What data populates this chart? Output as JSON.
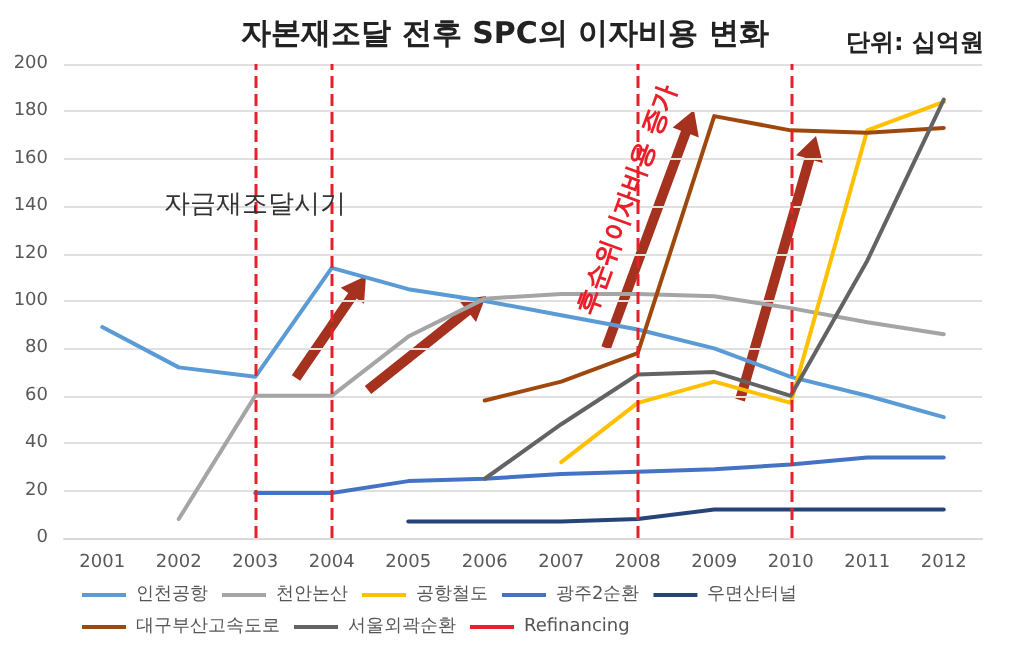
{
  "chart_data": {
    "type": "line",
    "title": "자본재조달 전후 SPC의 이자비용 변화",
    "subtitle": "단위: 십억원",
    "categories": [
      "2001",
      "2002",
      "2003",
      "2004",
      "2005",
      "2006",
      "2007",
      "2008",
      "2009",
      "2010",
      "2011",
      "2012"
    ],
    "series": [
      {
        "name": "인천공항",
        "color": "#5b9bd5",
        "values": [
          89,
          72,
          68,
          114,
          105,
          100,
          94,
          88,
          80,
          68,
          60,
          51
        ]
      },
      {
        "name": "천안논산",
        "color": "#a5a5a5",
        "values": [
          null,
          8,
          60,
          60,
          85,
          101,
          103,
          103,
          102,
          97,
          91,
          86
        ]
      },
      {
        "name": "공항철도",
        "color": "#ffc000",
        "values": [
          null,
          null,
          null,
          null,
          null,
          null,
          32,
          57,
          66,
          57,
          172,
          184
        ]
      },
      {
        "name": "광주2순환",
        "color": "#4472c4",
        "values": [
          null,
          null,
          19,
          19,
          24,
          25,
          27,
          28,
          29,
          31,
          34,
          34
        ]
      },
      {
        "name": "우면산터널",
        "color": "#264478",
        "values": [
          null,
          null,
          null,
          null,
          7,
          7,
          7,
          8,
          12,
          12,
          12,
          12
        ]
      },
      {
        "name": "대구부산고속도로",
        "color": "#9e480e",
        "values": [
          null,
          null,
          null,
          null,
          null,
          58,
          66,
          78,
          178,
          172,
          171,
          173
        ]
      },
      {
        "name": "서울외곽순환",
        "color": "#636363",
        "values": [
          null,
          null,
          null,
          null,
          null,
          25,
          48,
          69,
          70,
          60,
          117,
          185
        ]
      }
    ],
    "ylim": [
      0,
      200
    ],
    "yticks": [
      0,
      20,
      40,
      60,
      80,
      100,
      120,
      140,
      160,
      180,
      200
    ],
    "grid": "y",
    "legend": "bottom",
    "marker": "none",
    "line_style": "solid",
    "ref_lines": [
      {
        "axis": "x",
        "value": "2003",
        "label": "Refinancing",
        "color": "#e8202a",
        "line_style": "dashed"
      },
      {
        "axis": "x",
        "value": "2004",
        "color": "#e8202a",
        "line_style": "dashed"
      },
      {
        "axis": "x",
        "value": "2008",
        "color": "#e8202a",
        "line_style": "dashed"
      },
      {
        "axis": "x",
        "value": "2010",
        "color": "#e8202a",
        "line_style": "dashed"
      }
    ],
    "annotations": [
      {
        "text": "자금재조달시기",
        "x": "2003",
        "y": 135
      },
      "후순위이자비용 증가"
    ]
  }
}
